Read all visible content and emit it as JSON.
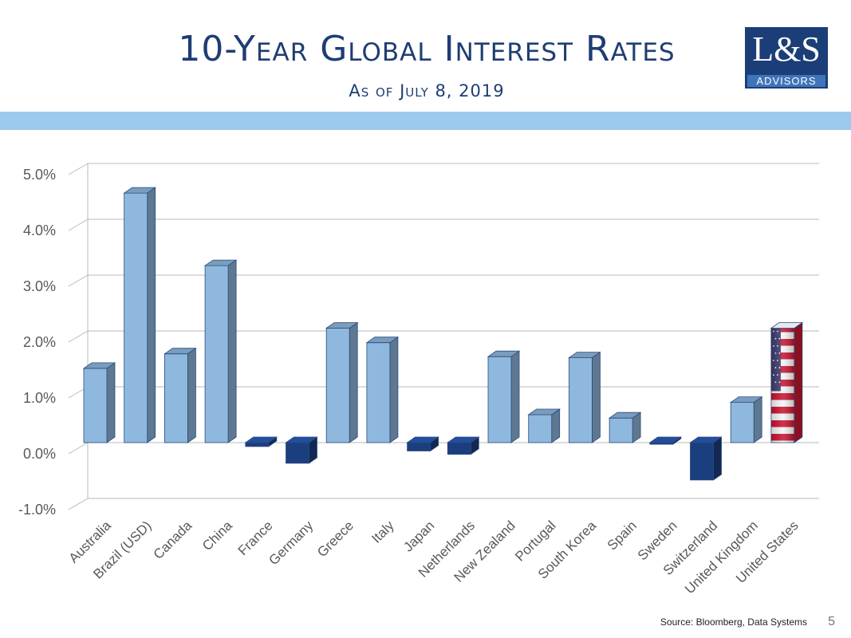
{
  "slide": {
    "title": "10-Year Global Interest Rates",
    "subtitle": "As of July 8, 2019",
    "source": "Source:  Bloomberg, Data Systems",
    "page_number": "5"
  },
  "logo": {
    "main": "L&S",
    "sub": "ADVISORS"
  },
  "colors": {
    "positive_bar": "#8fb8de",
    "negative_bar": "#1b3e7e",
    "title": "#1f3d73",
    "band": "#9ccaee",
    "us_flag_red": "#c8102e",
    "us_flag_blue": "#3c3b6e"
  },
  "chart_data": {
    "type": "bar",
    "title": "",
    "xlabel": "",
    "ylabel": "",
    "categories": [
      "Australia",
      "Brazil (USD)",
      "Canada",
      "China",
      "France",
      "Germany",
      "Greece",
      "Italy",
      "Japan",
      "Netherlands",
      "New Zealand",
      "Portugal",
      "South Korea",
      "Spain",
      "Sweden",
      "Switzerland",
      "United Kingdom",
      "United States"
    ],
    "values": [
      1.33,
      4.47,
      1.59,
      3.17,
      -0.07,
      -0.37,
      2.05,
      1.79,
      -0.15,
      -0.21,
      1.54,
      0.5,
      1.52,
      0.44,
      -0.03,
      -0.67,
      0.72,
      2.05
    ],
    "special_fill": {
      "United States": "us-flag"
    },
    "ylim": [
      -1.0,
      5.0
    ],
    "yticks": [
      "-1.0%",
      "0.0%",
      "1.0%",
      "2.0%",
      "3.0%",
      "4.0%",
      "5.0%"
    ],
    "grid": true,
    "legend": "none"
  }
}
